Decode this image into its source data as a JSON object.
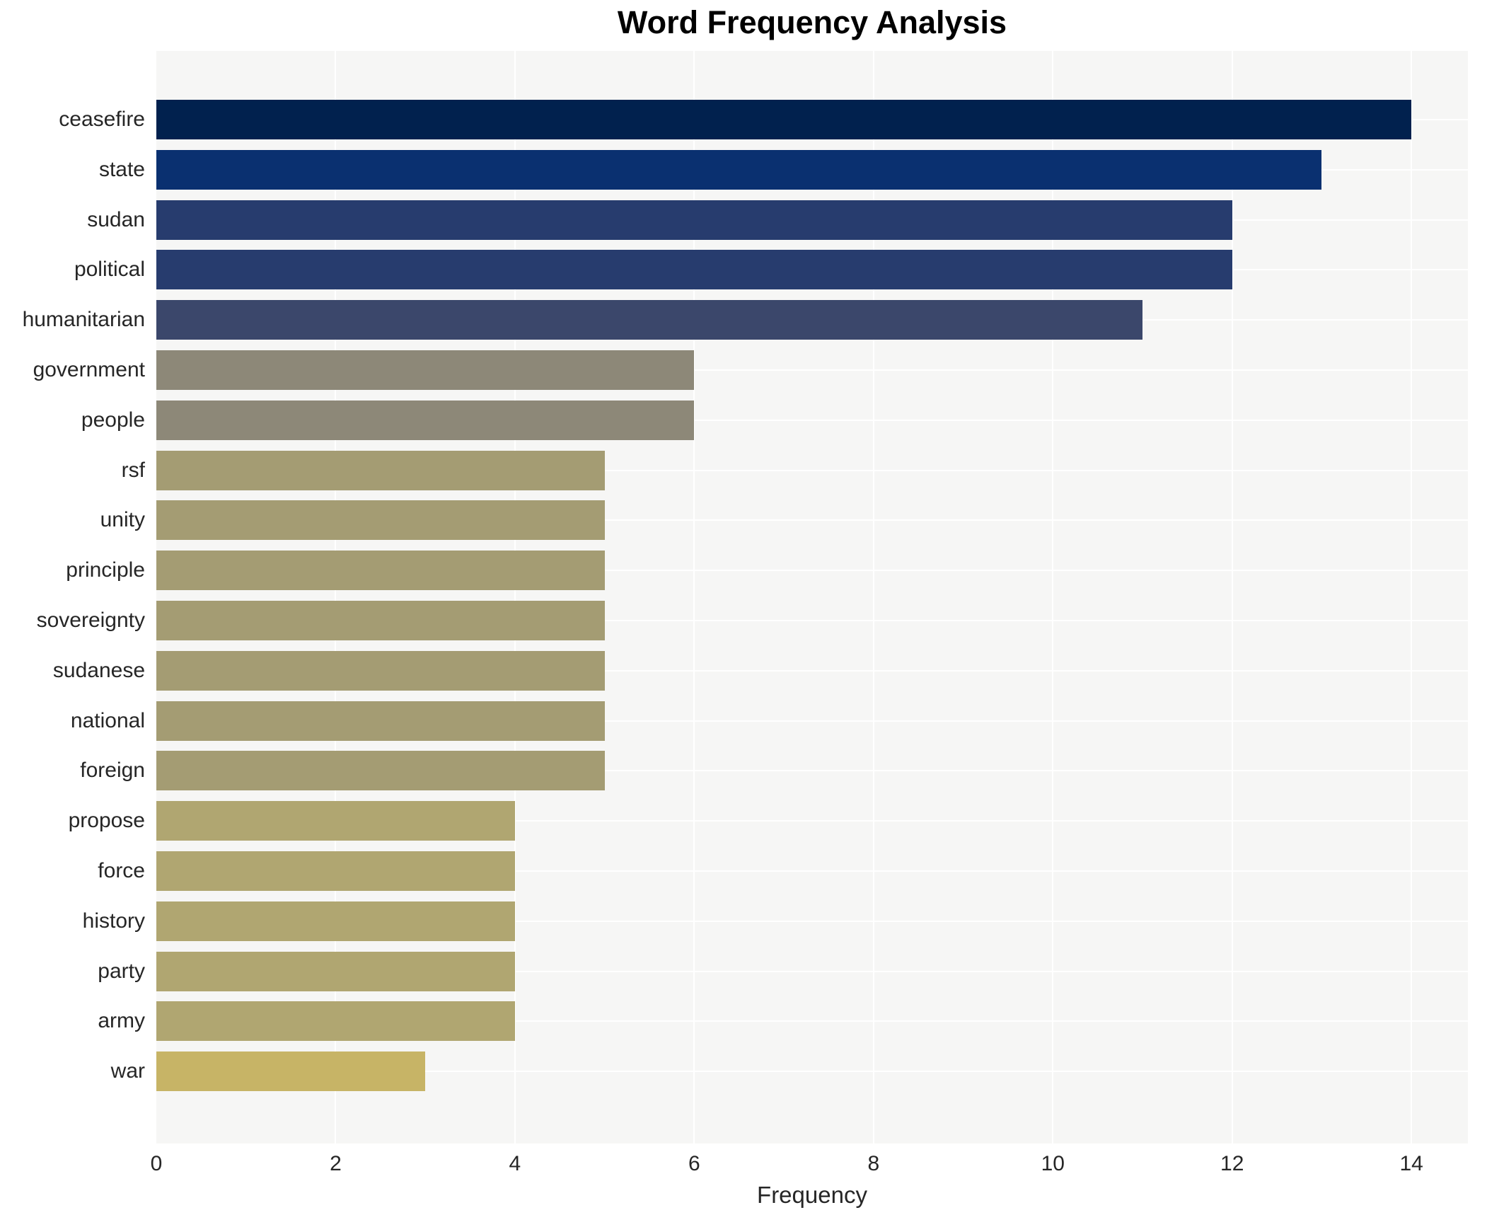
{
  "chart_data": {
    "type": "bar",
    "orientation": "horizontal",
    "title": "Word Frequency Analysis",
    "xlabel": "Frequency",
    "ylabel": "",
    "categories": [
      "ceasefire",
      "state",
      "sudan",
      "political",
      "humanitarian",
      "government",
      "people",
      "rsf",
      "unity",
      "principle",
      "sovereignty",
      "sudanese",
      "national",
      "foreign",
      "propose",
      "force",
      "history",
      "party",
      "army",
      "war"
    ],
    "values": [
      14,
      13,
      12,
      12,
      11,
      6,
      6,
      5,
      5,
      5,
      5,
      5,
      5,
      5,
      4,
      4,
      4,
      4,
      4,
      3
    ],
    "bar_colors": [
      "#01214e",
      "#0a3070",
      "#273c6e",
      "#273c6e",
      "#3b476b",
      "#8d8878",
      "#8d8878",
      "#a49c73",
      "#a49c73",
      "#a49c73",
      "#a49c73",
      "#a49c73",
      "#a49c73",
      "#a49c73",
      "#b0a671",
      "#b0a671",
      "#b0a671",
      "#b0a671",
      "#b0a671",
      "#c7b466"
    ],
    "xlim": [
      0,
      14.63
    ],
    "xticks": [
      0,
      2,
      4,
      6,
      8,
      10,
      12,
      14
    ],
    "grid": true,
    "legend": null,
    "colors": {
      "plot_background": "#f6f6f5",
      "gridline": "#ffffff",
      "figure_background": "#ffffff",
      "text": "#262626",
      "title_text": "#000000"
    }
  }
}
